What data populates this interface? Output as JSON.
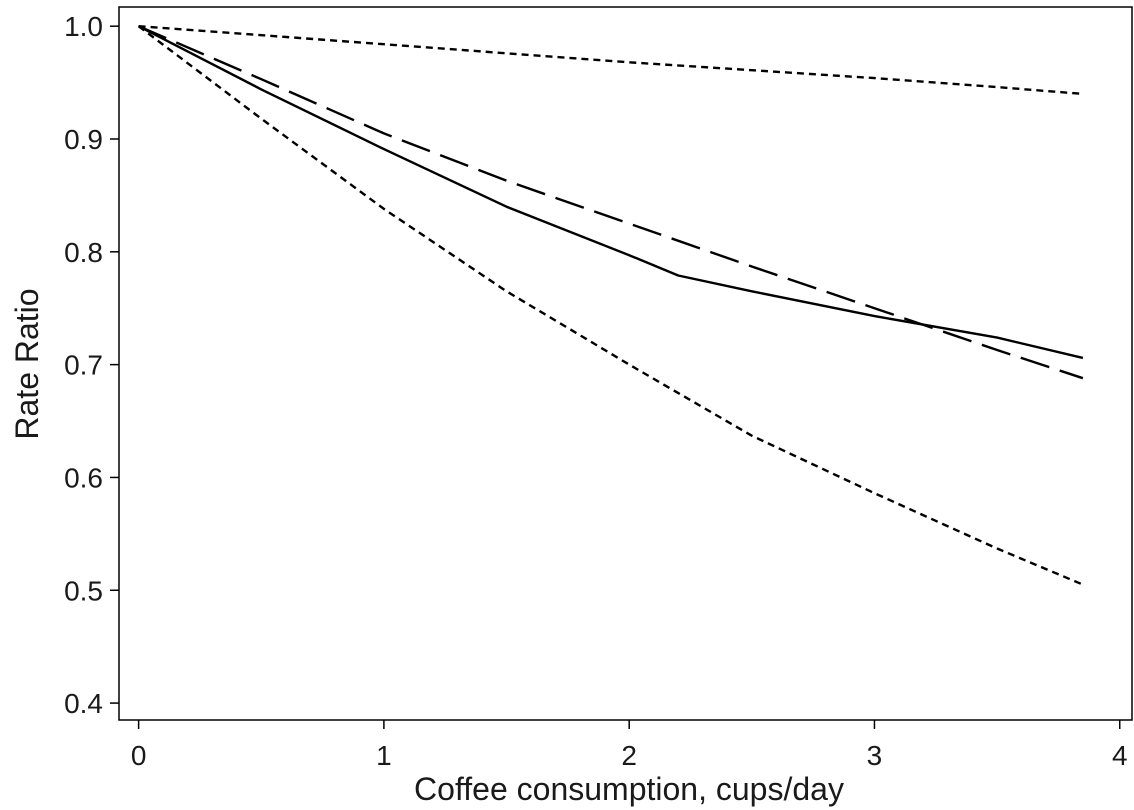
{
  "chart_data": {
    "type": "line",
    "title": "",
    "xlabel": "Coffee consumption, cups/day",
    "ylabel": "Rate Ratio",
    "xlim": [
      -0.08,
      4.05
    ],
    "ylim": [
      0.385,
      1.017
    ],
    "x_ticks": [
      0,
      1,
      2,
      3,
      4
    ],
    "y_ticks": [
      0.4,
      0.5,
      0.6,
      0.7,
      0.8,
      0.9,
      1.0
    ],
    "x_tick_labels": [
      "0",
      "1",
      "2",
      "3",
      "4"
    ],
    "y_tick_labels": [
      "0.4",
      "0.5",
      "0.6",
      "0.7",
      "0.8",
      "0.9",
      "1.0"
    ],
    "grid": false,
    "legend": "none",
    "series": [
      {
        "style": "solid",
        "color": "#000000",
        "points": [
          [
            0,
            1.0
          ],
          [
            0.5,
            0.944
          ],
          [
            1.0,
            0.891
          ],
          [
            1.5,
            0.84
          ],
          [
            2.0,
            0.797
          ],
          [
            2.2,
            0.779
          ],
          [
            2.5,
            0.765
          ],
          [
            3.0,
            0.743
          ],
          [
            3.5,
            0.724
          ],
          [
            3.85,
            0.706
          ]
        ]
      },
      {
        "style": "long-dash",
        "color": "#000000",
        "points": [
          [
            0,
            1.0
          ],
          [
            0.5,
            0.953
          ],
          [
            1.0,
            0.905
          ],
          [
            1.5,
            0.863
          ],
          [
            2.0,
            0.825
          ],
          [
            2.5,
            0.787
          ],
          [
            3.0,
            0.75
          ],
          [
            3.5,
            0.713
          ],
          [
            3.85,
            0.688
          ]
        ]
      },
      {
        "style": "short-dash",
        "color": "#000000",
        "points": [
          [
            0,
            1.0
          ],
          [
            0.5,
            0.992
          ],
          [
            1.0,
            0.984
          ],
          [
            1.5,
            0.976
          ],
          [
            2.0,
            0.968
          ],
          [
            2.5,
            0.961
          ],
          [
            3.0,
            0.954
          ],
          [
            3.5,
            0.946
          ],
          [
            3.85,
            0.94
          ]
        ]
      },
      {
        "style": "short-dash",
        "color": "#000000",
        "points": [
          [
            0,
            1.0
          ],
          [
            0.5,
            0.918
          ],
          [
            1.0,
            0.838
          ],
          [
            1.5,
            0.765
          ],
          [
            2.0,
            0.7
          ],
          [
            2.5,
            0.637
          ],
          [
            3.0,
            0.586
          ],
          [
            3.5,
            0.537
          ],
          [
            3.85,
            0.505
          ]
        ]
      }
    ]
  }
}
